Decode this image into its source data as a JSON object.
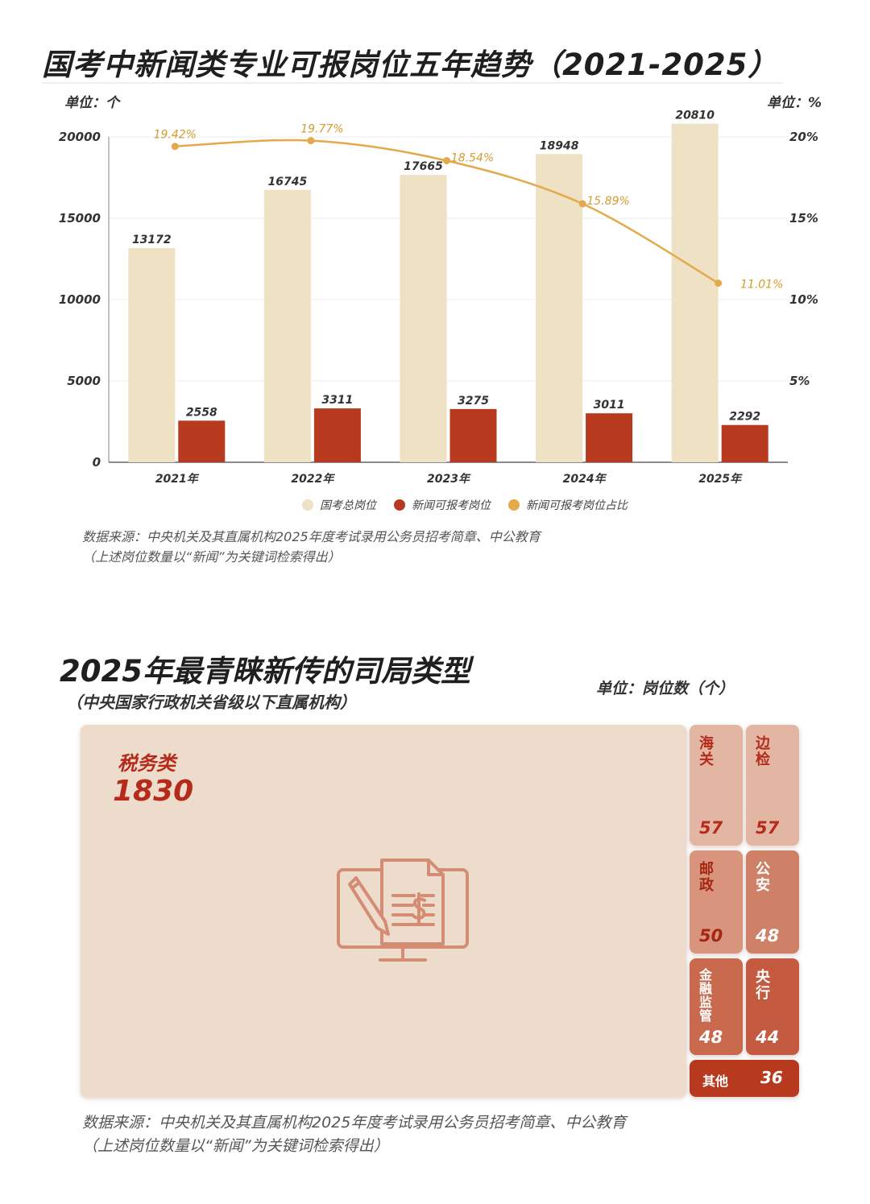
{
  "section1": {
    "title": "国考中新闻类专业可报岗位五年趋势（2021-2025）",
    "unit_left": "单位：个",
    "unit_right": "单位：%",
    "source_line1": "数据来源：中央机关及其直属机构2025年度考试录用公务员招考简章、中公教育",
    "source_line2": "（上述岗位数量以“新闻”为关键词检索得出）"
  },
  "chart_data": {
    "type": "bar",
    "categories": [
      "2021年",
      "2022年",
      "2023年",
      "2024年",
      "2025年"
    ],
    "series": [
      {
        "name": "国考总岗位",
        "type": "bar",
        "axis": "left",
        "color": "#efe1c4",
        "values": [
          13172,
          16745,
          17665,
          18948,
          20810
        ]
      },
      {
        "name": "新闻可报考岗位",
        "type": "bar",
        "axis": "left",
        "color": "#b83a1e",
        "values": [
          2558,
          3311,
          3275,
          3011,
          2292
        ]
      },
      {
        "name": "新闻可报考岗位占比",
        "type": "line",
        "axis": "right",
        "color": "#e3a94a",
        "values": [
          19.42,
          19.77,
          18.54,
          15.89,
          11.01
        ],
        "labels": [
          "19.42%",
          "19.77%",
          "18.54%",
          "15.89%",
          "11.01%"
        ]
      }
    ],
    "y_left": {
      "ticks": [
        "0",
        "5000",
        "10000",
        "15000",
        "20000"
      ],
      "ylim": [
        0,
        20000
      ]
    },
    "y_right": {
      "ticks": [
        "5%",
        "10%",
        "15%",
        "20%"
      ],
      "ylim": [
        0,
        20
      ]
    },
    "grid": true,
    "legend_position": "bottom"
  },
  "section2": {
    "title": "2025年最青睐新传的司局类型",
    "subtitle": "（中央国家行政机关省级以下直属机构）",
    "unit": "单位：岗位数（个）",
    "icon": "tax-document-monitor-icon",
    "treemap": [
      {
        "name": "税务类",
        "value": "1830"
      },
      {
        "name": "海关",
        "value": "57"
      },
      {
        "name": "边检",
        "value": "57"
      },
      {
        "name": "邮政",
        "value": "50"
      },
      {
        "name": "公安",
        "value": "48"
      },
      {
        "name": "金融监管",
        "value": "48"
      },
      {
        "name": "央行",
        "value": "44"
      },
      {
        "name": "其他",
        "value": "36"
      }
    ],
    "source_line1": "数据来源：中央机关及其直属机构2025年度考试录用公务员招考简章、中公教育",
    "source_line2": "（上述岗位数量以“新闻”为关键词检索得出）"
  },
  "colors": {
    "bar_total": "#efe1c4",
    "bar_news": "#b83a1e",
    "line_pct": "#e3a94a",
    "tile_main": "#eddccb",
    "tile_text": "#b52a1a"
  }
}
